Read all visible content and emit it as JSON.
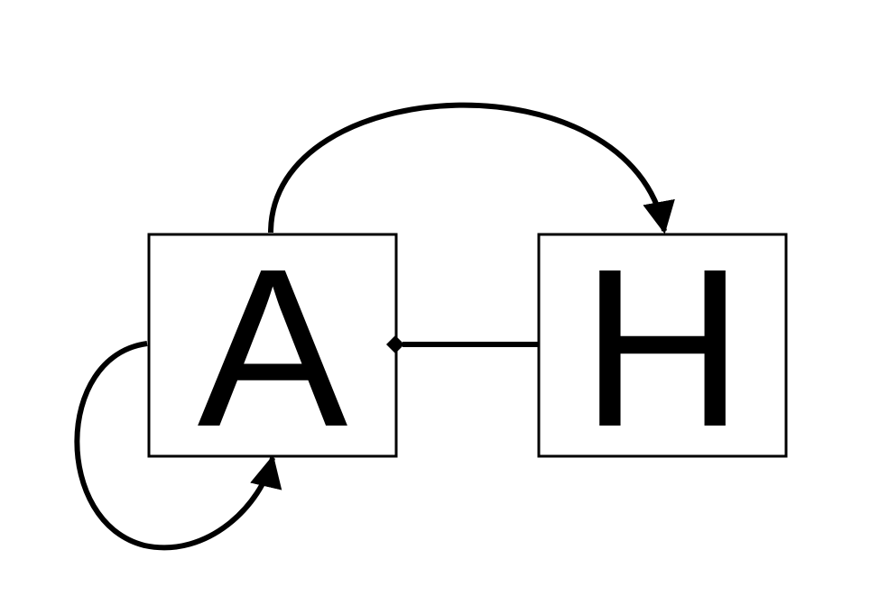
{
  "diagram": {
    "nodes": [
      {
        "id": "A",
        "label": "A"
      },
      {
        "id": "H",
        "label": "H"
      }
    ],
    "edges": [
      {
        "from": "A",
        "to": "H",
        "style": "arrow"
      },
      {
        "from": "A",
        "to": "A",
        "style": "self-loop-arrow"
      },
      {
        "from": "H",
        "to": "A",
        "style": "diamond-end-line"
      }
    ],
    "colors": {
      "stroke": "#000000",
      "background": "#ffffff"
    }
  }
}
